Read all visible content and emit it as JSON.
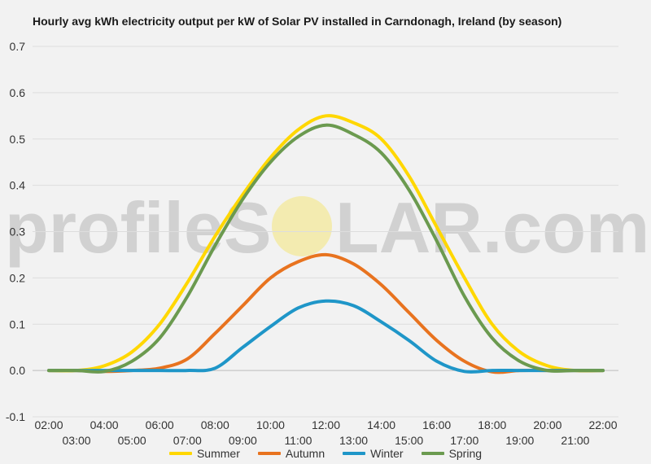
{
  "watermark": {
    "left_text": "profileS",
    "right_text": "LAR.com",
    "sun_color": "#f3ebb0"
  },
  "chart_data": {
    "type": "line",
    "title": "Hourly avg kWh electricity output per kW of Solar PV installed in Carndonagh, Ireland (by season)",
    "xlabel": "",
    "ylabel": "",
    "ylim": [
      -0.1,
      0.7
    ],
    "yticks": [
      "-0.1",
      "0.0",
      "0.1",
      "0.2",
      "0.3",
      "0.4",
      "0.5",
      "0.6",
      "0.7"
    ],
    "ytick_values": [
      -0.1,
      0.0,
      0.1,
      0.2,
      0.3,
      0.4,
      0.5,
      0.6,
      0.7
    ],
    "grid": true,
    "legend_position": "bottom",
    "x": [
      "02:00",
      "03:00",
      "04:00",
      "05:00",
      "06:00",
      "07:00",
      "08:00",
      "09:00",
      "10:00",
      "11:00",
      "12:00",
      "13:00",
      "14:00",
      "15:00",
      "16:00",
      "17:00",
      "18:00",
      "19:00",
      "20:00",
      "21:00",
      "22:00"
    ],
    "series": [
      {
        "name": "Summer",
        "color": "#ffd700",
        "values": [
          0.0,
          0.0,
          0.01,
          0.04,
          0.1,
          0.19,
          0.29,
          0.38,
          0.46,
          0.52,
          0.55,
          0.535,
          0.5,
          0.42,
          0.31,
          0.2,
          0.1,
          0.04,
          0.01,
          0.0,
          0.0
        ]
      },
      {
        "name": "Autumn",
        "color": "#e8731f",
        "values": [
          0.0,
          0.0,
          -0.002,
          0.0,
          0.005,
          0.025,
          0.08,
          0.14,
          0.2,
          0.235,
          0.25,
          0.23,
          0.185,
          0.125,
          0.065,
          0.02,
          -0.003,
          0.0,
          0.0,
          0.0,
          0.0
        ]
      },
      {
        "name": "Winter",
        "color": "#1f96c8",
        "values": [
          0.0,
          0.0,
          0.0,
          0.0,
          0.0,
          0.0,
          0.005,
          0.05,
          0.095,
          0.135,
          0.15,
          0.14,
          0.105,
          0.065,
          0.02,
          -0.002,
          0.0,
          0.0,
          0.0,
          0.0,
          0.0
        ]
      },
      {
        "name": "Spring",
        "color": "#6b9a4f",
        "values": [
          0.0,
          0.0,
          -0.002,
          0.02,
          0.07,
          0.16,
          0.27,
          0.37,
          0.45,
          0.505,
          0.53,
          0.51,
          0.47,
          0.39,
          0.28,
          0.16,
          0.07,
          0.02,
          0.0,
          0.0,
          0.0
        ]
      }
    ]
  }
}
